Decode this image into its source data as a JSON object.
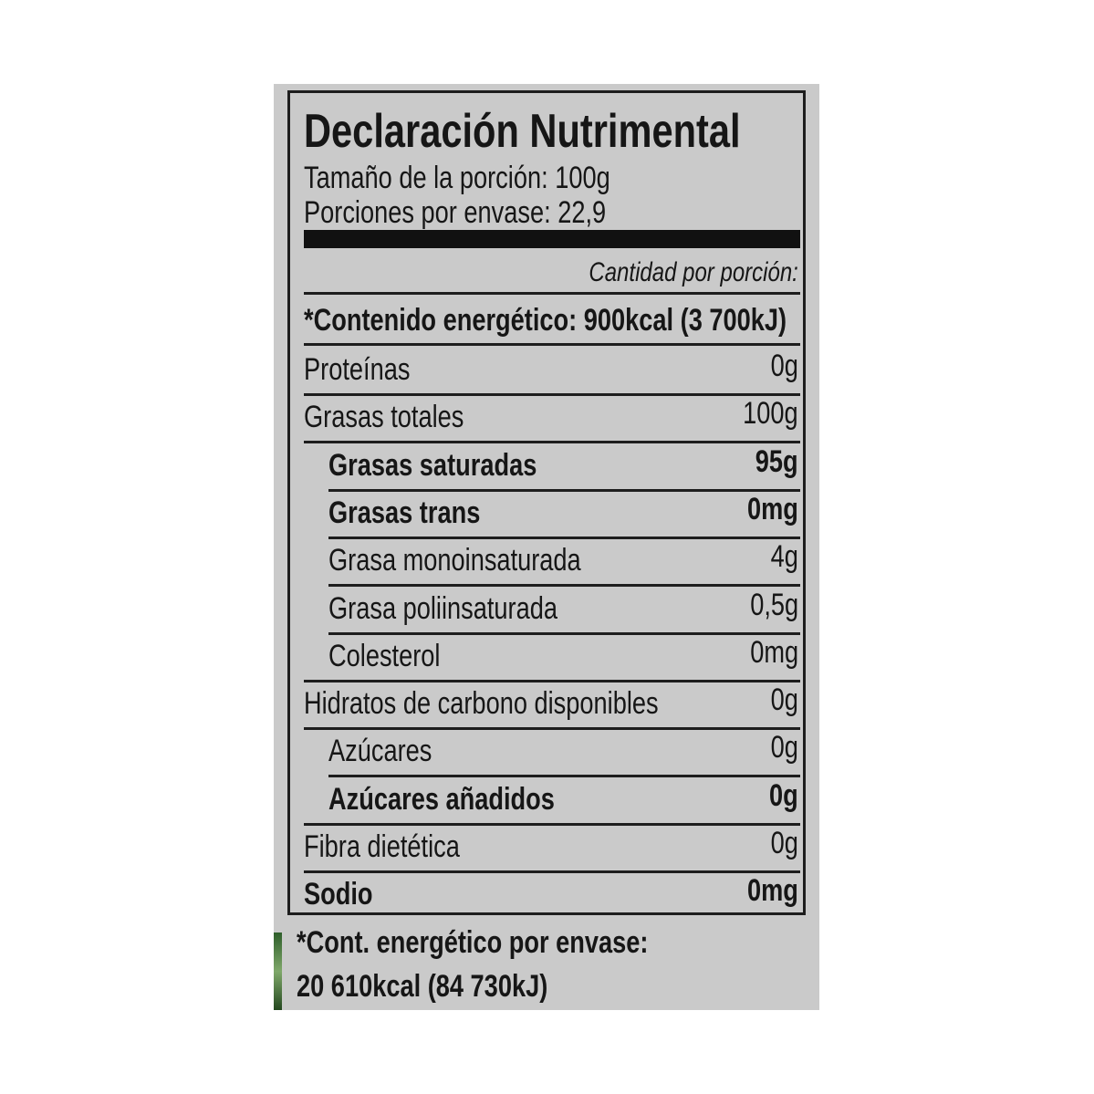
{
  "label": {
    "title": "Declaración Nutrimental",
    "serving_size": "Tamaño de la porción: 100g",
    "servings_per_container": "Porciones por envase: 22,9",
    "amount_per_serving": "Cantidad por porción:",
    "energy": "*Contenido energético: 900kcal (3 700kJ)",
    "rows": [
      {
        "name": "Proteínas",
        "value": "0g"
      },
      {
        "name": "Grasas totales",
        "value": "100g"
      },
      {
        "name": "Grasas saturadas",
        "value": "95g"
      },
      {
        "name": "Grasas trans",
        "value": "0mg"
      },
      {
        "name": "Grasa monoinsaturada",
        "value": "4g"
      },
      {
        "name": "Grasa poliinsaturada",
        "value": "0,5g"
      },
      {
        "name": "Colesterol",
        "value": "0mg"
      },
      {
        "name": "Hidratos de carbono disponibles",
        "value": "0g"
      },
      {
        "name": "Azúcares",
        "value": "0g"
      },
      {
        "name": "Azúcares añadidos",
        "value": "0g"
      },
      {
        "name": "Fibra dietética",
        "value": "0g"
      },
      {
        "name": "Sodio",
        "value": "0mg"
      }
    ],
    "footnote_line1": "*Cont. energético por envase:",
    "footnote_line2": "20 610kcal (84 730kJ)"
  }
}
